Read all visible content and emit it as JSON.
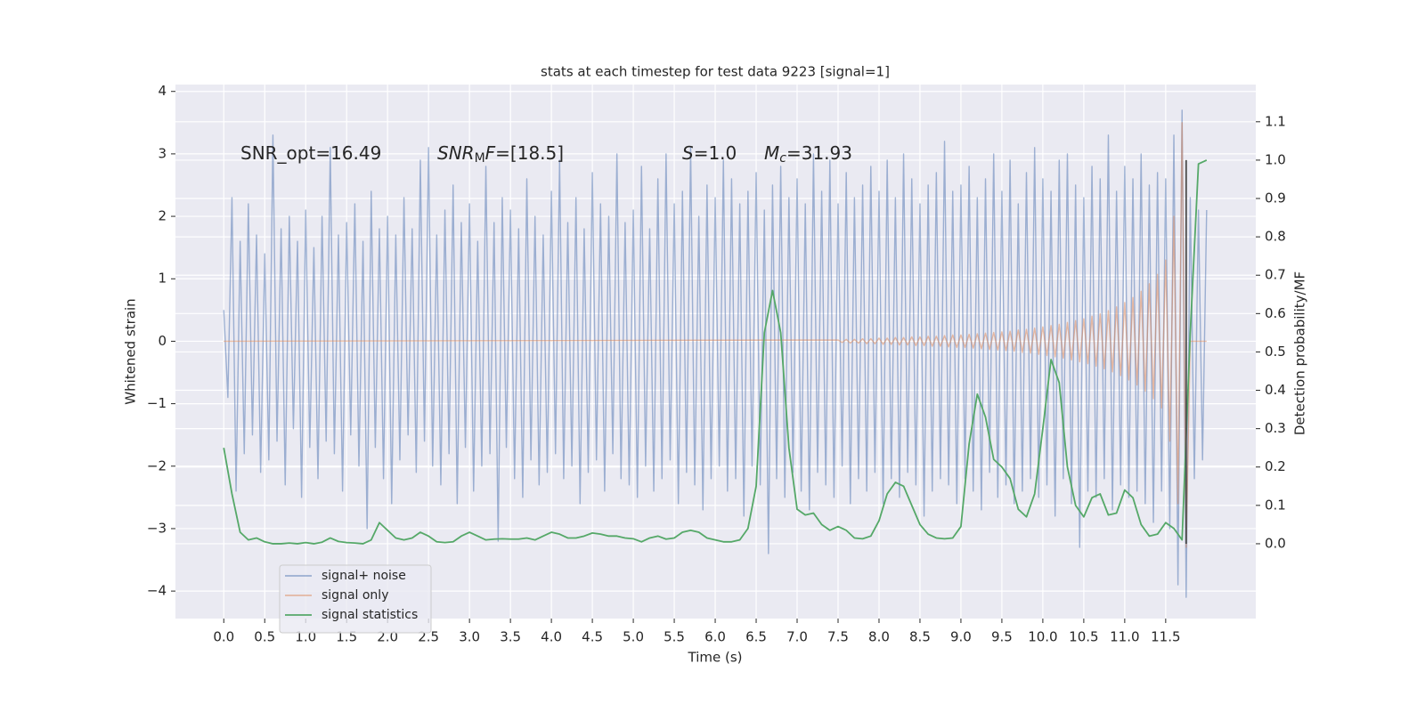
{
  "chart_data": {
    "type": "line",
    "title": "stats at each timestep for test data 9223 [signal=1]",
    "xlabel": "Time (s)",
    "ylabel": "Whitened strain",
    "y2label": "Detection probability/MF",
    "annotations": [
      {
        "parts": [
          {
            "text": "SNR_opt=16.49"
          }
        ]
      },
      {
        "parts": [
          {
            "text": "SNR",
            "style": "italic"
          },
          {
            "text": "M",
            "style": "sub"
          },
          {
            "text": "F",
            "style": "italic"
          },
          {
            "text": "=[18.5]"
          }
        ]
      },
      {
        "parts": [
          {
            "text": "S",
            "style": "italic"
          },
          {
            "text": "=1.0"
          }
        ]
      },
      {
        "parts": [
          {
            "text": "M",
            "style": "italic"
          },
          {
            "text": "c",
            "style": "italic-sub"
          },
          {
            "text": "=31.93"
          }
        ]
      }
    ],
    "x": [
      0,
      0.05,
      0.1,
      0.15,
      0.2,
      0.25,
      0.3,
      0.35,
      0.4,
      0.45,
      0.5,
      0.55,
      0.6,
      0.65,
      0.7,
      0.75,
      0.8,
      0.85,
      0.9,
      0.95,
      1,
      1.05,
      1.1,
      1.15,
      1.2,
      1.25,
      1.3,
      1.35,
      1.4,
      1.45,
      1.5,
      1.55,
      1.6,
      1.65,
      1.7,
      1.75,
      1.8,
      1.85,
      1.9,
      1.95,
      2,
      2.05,
      2.1,
      2.15,
      2.2,
      2.25,
      2.3,
      2.35,
      2.4,
      2.45,
      2.5,
      2.55,
      2.6,
      2.65,
      2.7,
      2.75,
      2.8,
      2.85,
      2.9,
      2.95,
      3,
      3.05,
      3.1,
      3.15,
      3.2,
      3.25,
      3.3,
      3.35,
      3.4,
      3.45,
      3.5,
      3.55,
      3.6,
      3.65,
      3.7,
      3.75,
      3.8,
      3.85,
      3.9,
      3.95,
      4,
      4.05,
      4.1,
      4.15,
      4.2,
      4.25,
      4.3,
      4.35,
      4.4,
      4.45,
      4.5,
      4.55,
      4.6,
      4.65,
      4.7,
      4.75,
      4.8,
      4.85,
      4.9,
      4.95,
      5,
      5.05,
      5.1,
      5.15,
      5.2,
      5.25,
      5.3,
      5.35,
      5.4,
      5.45,
      5.5,
      5.55,
      5.6,
      5.65,
      5.7,
      5.75,
      5.8,
      5.85,
      5.9,
      5.95,
      6,
      6.05,
      6.1,
      6.15,
      6.2,
      6.25,
      6.3,
      6.35,
      6.4,
      6.45,
      6.5,
      6.55,
      6.6,
      6.65,
      6.7,
      6.75,
      6.8,
      6.85,
      6.9,
      6.95,
      7,
      7.05,
      7.1,
      7.15,
      7.2,
      7.25,
      7.3,
      7.35,
      7.4,
      7.45,
      7.5,
      7.55,
      7.6,
      7.65,
      7.7,
      7.75,
      7.8,
      7.85,
      7.9,
      7.95,
      8,
      8.05,
      8.1,
      8.15,
      8.2,
      8.25,
      8.3,
      8.35,
      8.4,
      8.45,
      8.5,
      8.55,
      8.6,
      8.65,
      8.7,
      8.75,
      8.8,
      8.85,
      8.9,
      8.95,
      9,
      9.05,
      9.1,
      9.15,
      9.2,
      9.25,
      9.3,
      9.35,
      9.4,
      9.45,
      9.5,
      9.55,
      9.6,
      9.65,
      9.7,
      9.75,
      9.8,
      9.85,
      9.9,
      9.95,
      10,
      10.05,
      10.1,
      10.15,
      10.2,
      10.25,
      10.3,
      10.35,
      10.4,
      10.45,
      10.5,
      10.55,
      10.6,
      10.65,
      10.7,
      10.75,
      10.8,
      10.85,
      10.9,
      10.95,
      11,
      11.05,
      11.1,
      11.15,
      11.2,
      11.25,
      11.3,
      11.35,
      11.4,
      11.45,
      11.5,
      11.55,
      11.6,
      11.65,
      11.7,
      11.75,
      11.8,
      11.85,
      11.9,
      11.95,
      12
    ],
    "series": [
      {
        "name": "signal+ noise",
        "color": "#4c72b0",
        "alpha": 0.5,
        "values": [
          0.5,
          -0.9,
          2.3,
          -2.4,
          1.6,
          -1.8,
          2.2,
          -1.5,
          1.7,
          -2.1,
          1.4,
          -1.9,
          3.3,
          -1.6,
          1.8,
          -2.3,
          2.0,
          -1.4,
          1.6,
          -2.5,
          2.1,
          -1.7,
          1.5,
          -2.2,
          2.0,
          -1.6,
          3.1,
          -1.8,
          1.7,
          -2.4,
          1.9,
          -1.5,
          2.2,
          -2.0,
          1.6,
          -3.0,
          2.4,
          -1.7,
          1.8,
          -2.2,
          2.0,
          -2.6,
          1.7,
          -1.9,
          2.3,
          -1.5,
          1.8,
          -2.1,
          2.9,
          -1.6,
          3.1,
          -2.0,
          1.7,
          -2.3,
          2.1,
          -1.8,
          2.5,
          -2.6,
          1.9,
          -1.7,
          2.2,
          -2.4,
          1.6,
          -2.0,
          2.8,
          -1.8,
          1.9,
          -3.2,
          2.3,
          -1.7,
          2.1,
          -2.2,
          1.8,
          -2.5,
          2.6,
          -1.9,
          2.0,
          -2.3,
          1.7,
          -2.1,
          2.4,
          -1.8,
          2.9,
          -2.2,
          1.9,
          -2.0,
          2.3,
          -2.6,
          1.8,
          -2.1,
          2.7,
          -1.9,
          2.2,
          -2.4,
          2.0,
          -1.8,
          3.0,
          -2.2,
          1.9,
          -2.3,
          2.1,
          -2.5,
          2.8,
          -2.0,
          1.8,
          -2.4,
          2.6,
          -2.2,
          3.0,
          -1.9,
          2.2,
          -2.6,
          2.4,
          -2.1,
          3.1,
          -2.3,
          2.0,
          -2.7,
          2.5,
          -2.2,
          2.3,
          -2.0,
          2.9,
          -2.4,
          2.6,
          -2.2,
          2.2,
          -2.8,
          2.4,
          -2.0,
          2.7,
          -2.3,
          2.1,
          -3.4,
          2.5,
          -2.2,
          2.8,
          -2.5,
          2.3,
          -2.1,
          2.6,
          -2.4,
          2.2,
          -2.7,
          3.0,
          -2.1,
          2.4,
          -2.3,
          2.9,
          -2.5,
          2.2,
          -2.0,
          2.7,
          -2.6,
          2.3,
          -2.2,
          2.5,
          -2.4,
          2.8,
          -2.1,
          2.4,
          -2.6,
          2.9,
          -2.2,
          2.3,
          -2.5,
          3.0,
          -2.1,
          2.6,
          -2.3,
          2.2,
          -2.8,
          2.5,
          -2.4,
          2.7,
          -2.2,
          3.2,
          -2.3,
          2.4,
          -2.6,
          2.5,
          -2.2,
          2.8,
          -2.4,
          2.3,
          -2.7,
          2.6,
          -2.1,
          3.0,
          -2.5,
          2.4,
          -2.3,
          2.9,
          -2.6,
          2.2,
          -2.4,
          2.7,
          -2.2,
          3.1,
          -2.5,
          2.6,
          -2.3,
          2.4,
          -2.8,
          2.9,
          -2.2,
          3.0,
          -2.6,
          2.5,
          -3.3,
          2.3,
          -2.4,
          2.8,
          -2.5,
          2.6,
          -2.2,
          3.3,
          -2.7,
          2.4,
          -2.3,
          2.8,
          -2.5,
          2.6,
          -2.4,
          3.0,
          -2.6,
          2.5,
          -2.9,
          2.7,
          -2.4,
          2.6,
          -3.0,
          3.3,
          -3.9,
          3.7,
          -4.1,
          2.3,
          -2.2,
          2.1,
          -1.9,
          2.1
        ]
      },
      {
        "name": "signal only",
        "color": "#dd8452",
        "alpha": 0.5,
        "x": [
          0,
          7.5,
          7.55,
          7.6,
          7.65,
          7.7,
          7.75,
          7.8,
          7.85,
          7.9,
          7.95,
          8,
          8.05,
          8.1,
          8.15,
          8.2,
          8.25,
          8.3,
          8.35,
          8.4,
          8.45,
          8.5,
          8.55,
          8.6,
          8.65,
          8.7,
          8.75,
          8.8,
          8.85,
          8.9,
          8.95,
          9,
          9.05,
          9.1,
          9.15,
          9.2,
          9.25,
          9.3,
          9.35,
          9.4,
          9.45,
          9.5,
          9.55,
          9.6,
          9.65,
          9.7,
          9.75,
          9.8,
          9.85,
          9.9,
          9.95,
          10,
          10.05,
          10.1,
          10.15,
          10.2,
          10.25,
          10.3,
          10.35,
          10.4,
          10.45,
          10.5,
          10.55,
          10.6,
          10.65,
          10.7,
          10.75,
          10.8,
          10.85,
          10.9,
          10.95,
          11,
          11.05,
          11.1,
          11.15,
          11.2,
          11.25,
          11.3,
          11.35,
          11.4,
          11.45,
          11.5,
          11.55,
          11.6,
          11.65,
          11.7,
          11.75,
          11.8,
          11.85,
          11.9,
          11.95,
          12
        ],
        "values": [
          0,
          0.02,
          -0.02,
          0.03,
          -0.03,
          0.03,
          -0.03,
          0.04,
          -0.04,
          0.04,
          -0.04,
          0.05,
          -0.05,
          0.05,
          -0.05,
          0.06,
          -0.06,
          0.06,
          -0.06,
          0.07,
          -0.07,
          0.07,
          -0.07,
          0.08,
          -0.08,
          0.08,
          -0.08,
          0.09,
          -0.09,
          0.1,
          -0.1,
          0.1,
          -0.1,
          0.11,
          -0.11,
          0.12,
          -0.12,
          0.13,
          -0.13,
          0.14,
          -0.14,
          0.15,
          -0.15,
          0.16,
          -0.16,
          0.18,
          -0.18,
          0.19,
          -0.19,
          0.21,
          -0.21,
          0.23,
          -0.23,
          0.25,
          -0.25,
          0.27,
          -0.27,
          0.3,
          -0.3,
          0.33,
          -0.33,
          0.36,
          -0.36,
          0.4,
          -0.4,
          0.44,
          -0.44,
          0.49,
          -0.49,
          0.55,
          -0.55,
          0.62,
          -0.62,
          0.7,
          -0.7,
          0.8,
          -0.8,
          0.92,
          -0.92,
          1.07,
          -1.07,
          1.3,
          -1.6,
          2.0,
          -2.6,
          3.5,
          -3.3,
          0,
          0,
          0,
          0,
          0
        ]
      },
      {
        "name": "signal statistics",
        "color": "#55a868",
        "axis": "y2",
        "x": [
          0,
          0.1,
          0.2,
          0.3,
          0.4,
          0.5,
          0.6,
          0.7,
          0.8,
          0.9,
          1,
          1.1,
          1.2,
          1.3,
          1.4,
          1.5,
          1.6,
          1.7,
          1.8,
          1.9,
          2,
          2.1,
          2.2,
          2.3,
          2.4,
          2.5,
          2.6,
          2.7,
          2.8,
          2.9,
          3,
          3.1,
          3.2,
          3.3,
          3.4,
          3.5,
          3.6,
          3.7,
          3.8,
          3.9,
          4,
          4.1,
          4.2,
          4.3,
          4.4,
          4.5,
          4.6,
          4.7,
          4.8,
          4.9,
          5,
          5.1,
          5.2,
          5.3,
          5.4,
          5.5,
          5.6,
          5.7,
          5.8,
          5.9,
          6,
          6.1,
          6.2,
          6.3,
          6.4,
          6.5,
          6.6,
          6.7,
          6.8,
          6.9,
          7,
          7.1,
          7.2,
          7.3,
          7.4,
          7.5,
          7.6,
          7.7,
          7.8,
          7.9,
          8,
          8.1,
          8.2,
          8.3,
          8.4,
          8.5,
          8.6,
          8.7,
          8.8,
          8.9,
          9,
          9.1,
          9.2,
          9.3,
          9.4,
          9.5,
          9.6,
          9.7,
          9.8,
          9.9,
          10,
          10.1,
          10.2,
          10.3,
          10.4,
          10.5,
          10.6,
          10.7,
          10.8,
          10.9,
          11,
          11.1,
          11.2,
          11.3,
          11.4,
          11.5,
          11.6,
          11.7,
          11.8,
          11.9,
          12
        ],
        "values": [
          0.25,
          0.13,
          0.03,
          0.01,
          0.015,
          0.005,
          0.0,
          0.0,
          0.002,
          0.0,
          0.003,
          0.0,
          0.004,
          0.015,
          0.006,
          0.003,
          0.002,
          0.0,
          0.01,
          0.055,
          0.035,
          0.015,
          0.01,
          0.015,
          0.03,
          0.02,
          0.005,
          0.003,
          0.005,
          0.02,
          0.03,
          0.02,
          0.01,
          0.012,
          0.013,
          0.012,
          0.012,
          0.015,
          0.01,
          0.02,
          0.03,
          0.025,
          0.015,
          0.015,
          0.02,
          0.028,
          0.025,
          0.02,
          0.02,
          0.015,
          0.013,
          0.005,
          0.015,
          0.02,
          0.012,
          0.015,
          0.03,
          0.035,
          0.03,
          0.015,
          0.01,
          0.005,
          0.005,
          0.01,
          0.04,
          0.15,
          0.55,
          0.66,
          0.55,
          0.25,
          0.09,
          0.075,
          0.08,
          0.05,
          0.035,
          0.045,
          0.035,
          0.015,
          0.013,
          0.02,
          0.06,
          0.13,
          0.16,
          0.15,
          0.1,
          0.05,
          0.025,
          0.015,
          0.013,
          0.015,
          0.045,
          0.26,
          0.39,
          0.33,
          0.22,
          0.2,
          0.17,
          0.09,
          0.07,
          0.13,
          0.3,
          0.48,
          0.42,
          0.2,
          0.1,
          0.07,
          0.12,
          0.13,
          0.075,
          0.08,
          0.14,
          0.12,
          0.05,
          0.02,
          0.025,
          0.055,
          0.04,
          0.01,
          0.55,
          0.99,
          1.0
        ]
      },
      {
        "color": "#4d4d4d",
        "axis": "y2",
        "x": [
          11.75,
          11.75
        ],
        "values": [
          0,
          1.0
        ]
      }
    ],
    "xlim": [
      -0.59,
      12.6
    ],
    "xticks": [
      {
        "value": 0,
        "label": "0.0"
      },
      0.5,
      {
        "value": 1,
        "label": "1.0"
      },
      1.5,
      {
        "value": 2,
        "label": "2.0"
      },
      2.5,
      {
        "value": 3,
        "label": "3.0"
      },
      3.5,
      {
        "value": 4,
        "label": "4.0"
      },
      4.5,
      {
        "value": 5,
        "label": "5.0"
      },
      5.5,
      {
        "value": 6,
        "label": "6.0"
      },
      6.5,
      {
        "value": 7,
        "label": "7.0"
      },
      7.5,
      {
        "value": 8,
        "label": "8.0"
      },
      8.5,
      {
        "value": 9,
        "label": "9.0"
      },
      9.5,
      {
        "value": 10,
        "label": "10.0"
      },
      10.5,
      {
        "value": 11,
        "label": "11.0"
      },
      11.5
    ],
    "ylim": [
      -4.44,
      4.11
    ],
    "yticks": [
      {
        "value": -4,
        "label": "−4"
      },
      {
        "value": -3,
        "label": "−3"
      },
      {
        "value": -2,
        "label": "−2"
      },
      {
        "value": -1,
        "label": "−1"
      },
      0,
      1,
      2,
      3,
      4
    ],
    "y2lim": [
      -0.195,
      1.197
    ],
    "y2ticks": [
      {
        "value": 0,
        "label": "0.0"
      },
      0.1,
      0.2,
      0.3,
      0.4,
      0.5,
      0.6,
      0.7,
      0.8,
      0.9,
      {
        "value": 1,
        "label": "1.0"
      },
      1.1
    ],
    "grid": true,
    "legend": "lower left"
  }
}
